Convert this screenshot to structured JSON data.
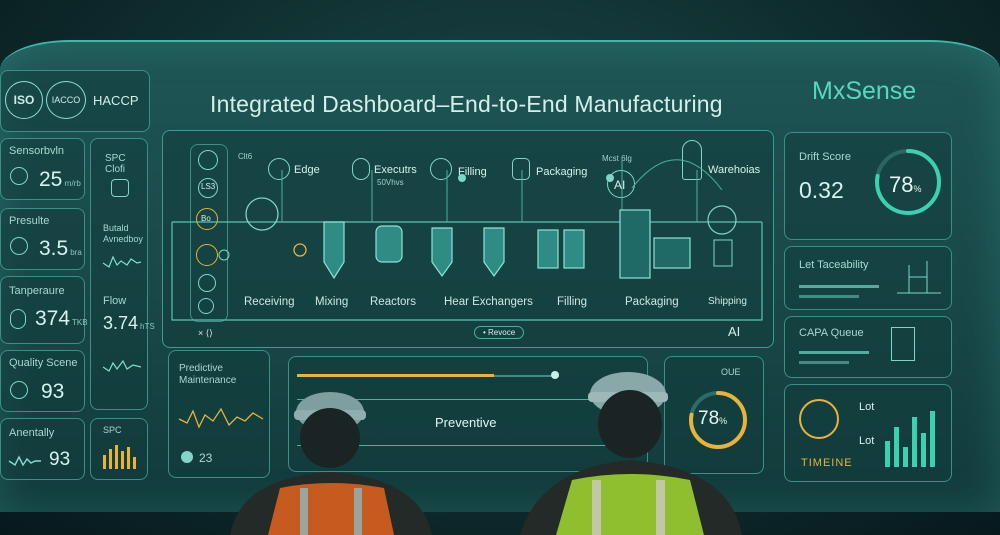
{
  "certs": [
    "ISO",
    "IACCO",
    "HACCP"
  ],
  "title": "Integrated Dashboard–End-to-End Manufacturing",
  "brand": "MxSense",
  "left_metrics": [
    {
      "label": "Sensorbvln",
      "value": "25",
      "unit": "rn/rb"
    },
    {
      "label": "Presulte",
      "value": "3.5",
      "unit": "bra"
    },
    {
      "label": "Tanperaure",
      "value": "374",
      "unit": "TKB"
    },
    {
      "label": "Quality Scene",
      "value": "93",
      "unit": ""
    },
    {
      "label": "Anentally",
      "value": "93",
      "unit": ""
    }
  ],
  "spc": {
    "label": "SPC Clofi",
    "sub_label": "Butald Avnedboy",
    "flow_label": "Flow",
    "flow_value": "3.74",
    "flow_unit": "hTS",
    "bottom_label": "SPC"
  },
  "flow_nodes": [
    {
      "label": "Edge"
    },
    {
      "label": "Executrs",
      "sub": "50Vhvs"
    },
    {
      "label": "Filling"
    },
    {
      "label": "Packaging"
    },
    {
      "label": "Warehoias",
      "sub": "Mcst 6lg"
    }
  ],
  "ai_label": "AI",
  "side_labels": [
    "Clt6",
    "Bo",
    "LS3"
  ],
  "process_stages": [
    "Receiving",
    "Mixing",
    "Reactors",
    "Hear Exchangers",
    "Filling",
    "Packaging",
    "Shipping"
  ],
  "bottom_bar": {
    "left_chip": "× ⟨⟩",
    "center_chip": "• Revoce",
    "right_label": "AI"
  },
  "predictive": {
    "title": "Predictive Maintenance",
    "value": "23"
  },
  "preventive": {
    "label": "Preventive",
    "progress": 0.75
  },
  "oee": {
    "label": "OUE",
    "value": "78",
    "unit": "%",
    "fraction": 0.78
  },
  "drift": {
    "label": "Drift Score",
    "value": "0.32",
    "gauge_value": "78",
    "gauge_unit": "%",
    "fraction": 0.78
  },
  "traceability": {
    "label": "Let Taceability"
  },
  "capa": {
    "label": "CAPA Queue"
  },
  "timeline": {
    "label": "TIMEINE",
    "lot1": "Lot",
    "lot2": "Lot"
  },
  "colors": {
    "accent": "#7fe0cf",
    "gauge_gold": "#e7b33a",
    "brand": "#55d8bf",
    "vest_orange": "#c75a1e",
    "vest_green": "#8fbf2f"
  }
}
